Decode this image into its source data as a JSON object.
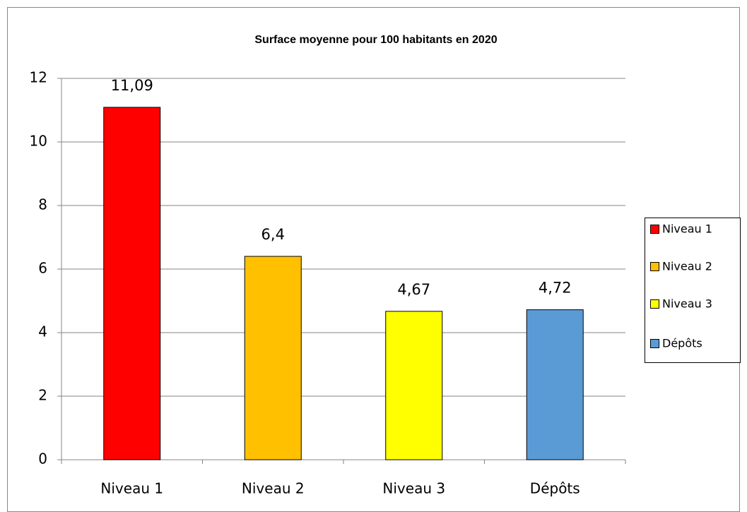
{
  "chart_data": {
    "type": "bar",
    "title": "Surface moyenne pour 100 habitants en 2020",
    "categories": [
      "Niveau 1",
      "Niveau 2",
      "Niveau 3",
      "Dépôts"
    ],
    "values": [
      11.09,
      6.4,
      4.67,
      4.72
    ],
    "value_labels": [
      "11,09",
      "6,4",
      "4,67",
      "4,72"
    ],
    "colors": [
      "#ff0000",
      "#ffc000",
      "#ffff00",
      "#5b9bd5"
    ],
    "ylim": [
      0,
      12
    ],
    "yticks": [
      0,
      2,
      4,
      6,
      8,
      10,
      12
    ],
    "grid": true,
    "legend": "right"
  }
}
